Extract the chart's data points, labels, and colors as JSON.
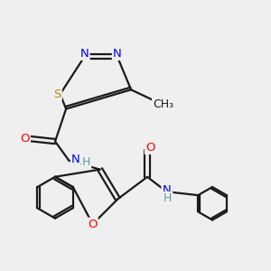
{
  "bg_color": "#efefef",
  "bond_color": "#1a1a1a",
  "bond_width": 1.6,
  "font_size": 9.5,
  "figsize": [
    3.0,
    3.0
  ],
  "dpi": 100,
  "xlim": [
    0,
    10
  ],
  "ylim": [
    0,
    10
  ]
}
